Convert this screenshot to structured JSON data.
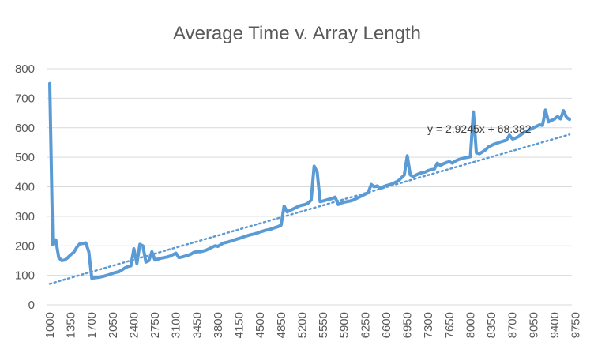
{
  "chart_data": {
    "type": "line",
    "title": "Average Time v. Array Length",
    "xlabel": "",
    "ylabel": "",
    "ylim": [
      0,
      800
    ],
    "yticks": [
      0,
      100,
      200,
      300,
      400,
      500,
      600,
      700,
      800
    ],
    "xtick_labels": [
      "1000",
      "1350",
      "1700",
      "2050",
      "2400",
      "2750",
      "3100",
      "3450",
      "3800",
      "4150",
      "4500",
      "4850",
      "5200",
      "5550",
      "5900",
      "6250",
      "6600",
      "6950",
      "7300",
      "7650",
      "8000",
      "8350",
      "8700",
      "9050",
      "9400",
      "9750"
    ],
    "x_start": 1000,
    "x_step": 50,
    "grid": true,
    "legend": "none",
    "colors": {
      "series": "#5b9bd5",
      "trend": "#5b9bd5",
      "grid": "#d9d9d9",
      "text": "#595959"
    },
    "series": [
      {
        "values": [
          750,
          205,
          220,
          160,
          150,
          152,
          160,
          170,
          178,
          195,
          207,
          208,
          210,
          180,
          90,
          92,
          93,
          95,
          97,
          100,
          103,
          107,
          110,
          112,
          118,
          125,
          130,
          132,
          190,
          140,
          205,
          200,
          145,
          150,
          180,
          152,
          155,
          158,
          160,
          162,
          165,
          170,
          175,
          160,
          162,
          165,
          168,
          172,
          178,
          180,
          180,
          182,
          185,
          190,
          195,
          200,
          198,
          205,
          210,
          212,
          215,
          218,
          222,
          225,
          228,
          232,
          235,
          238,
          240,
          243,
          247,
          250,
          253,
          255,
          258,
          262,
          265,
          270,
          335,
          315,
          320,
          325,
          330,
          335,
          338,
          340,
          345,
          355,
          470,
          450,
          350,
          352,
          355,
          358,
          360,
          365,
          340,
          345,
          348,
          350,
          352,
          355,
          360,
          365,
          370,
          375,
          380,
          408,
          400,
          403,
          395,
          400,
          404,
          407,
          410,
          415,
          420,
          430,
          440,
          505,
          440,
          435,
          440,
          445,
          448,
          450,
          455,
          458,
          460,
          480,
          472,
          478,
          482,
          485,
          480,
          487,
          492,
          495,
          498,
          500,
          502,
          654,
          515,
          512,
          518,
          525,
          535,
          540,
          545,
          548,
          552,
          555,
          558,
          575,
          562,
          565,
          570,
          578,
          585,
          590,
          595,
          600,
          605,
          610,
          608,
          660,
          620,
          625,
          630,
          638,
          630,
          658,
          635,
          628
        ]
      }
    ],
    "trendline": {
      "type": "linear",
      "label": "y = 2.9245x + 68.382",
      "slope": 2.9245,
      "intercept": 68.382
    }
  }
}
